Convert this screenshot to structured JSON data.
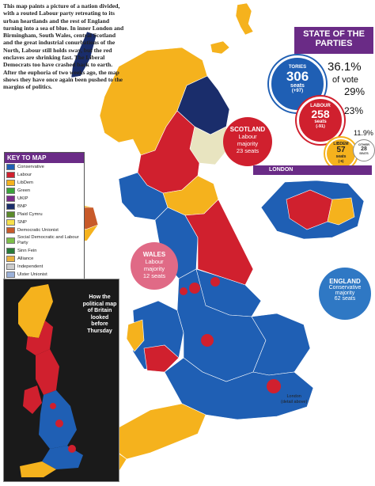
{
  "intro": "This map paints a picture of a nation divided, with a routed Labour party retreating to its urban heartlands and the rest of England turning into a sea of blue. In inner London and Birmingham, South Wales, central Scotland and the great industrial conurbations of the North, Labour still holds sway, but the red enclaves are shrinking fast. The Liberal Democrats too have crashed back to earth. After the euphoria of two weeks ago, the map shows they have once again been pushed to the margins of politics.",
  "parties": {
    "title_line1": "STATE OF THE",
    "title_line2": "PARTIES",
    "tories": {
      "name": "TORIES",
      "seats": "306",
      "seats_label": "seats",
      "change": "(+97)",
      "pct": "36.1%",
      "pct_label": "of vote",
      "color": "#1f5fb4"
    },
    "labour": {
      "name": "LABOUR",
      "seats": "258",
      "seats_label": "seats",
      "change": "(-91)",
      "pct": "29%",
      "color": "#d0202e"
    },
    "libdem": {
      "name": "LIBDEM",
      "seats": "57",
      "seats_label": "seats",
      "change": "(-5)",
      "pct": "23%",
      "color": "#f5b21d"
    },
    "other": {
      "name": "OTHER",
      "seats": "28",
      "seats_label": "SEATS",
      "pct": "11.9%"
    }
  },
  "regions": {
    "scotland": {
      "name": "SCOTLAND",
      "line1": "Labour",
      "line2": "majority",
      "line3": "23 seats",
      "color": "#d0202e"
    },
    "wales": {
      "name": "WALES",
      "line1": "Labour",
      "line2": "majority",
      "line3": "12 seats",
      "color": "#e06a86"
    },
    "england": {
      "name": "ENGLAND",
      "line1": "Conservative",
      "line2": "majority",
      "line3": "62 seats",
      "color": "#2f78c4"
    }
  },
  "london": {
    "label": "LONDON",
    "note_line1": "London",
    "note_line2": "(detail above)"
  },
  "key": {
    "title": "KEY TO MAP",
    "items": [
      {
        "label": "Conservative",
        "color": "#1f5fb4"
      },
      {
        "label": "Labour",
        "color": "#d0202e"
      },
      {
        "label": "LibDem",
        "color": "#f5b21d"
      },
      {
        "label": "Green",
        "color": "#3aa33a"
      },
      {
        "label": "UKIP",
        "color": "#7a2a8a"
      },
      {
        "label": "BNP",
        "color": "#1a2d6b"
      },
      {
        "label": "Plaid Cymru",
        "color": "#5a8a2a"
      },
      {
        "label": "SNP",
        "color": "#f7e04a"
      },
      {
        "label": "Democratic Unionist",
        "color": "#c85a2a"
      },
      {
        "label": "Social Democratic and Labour Party",
        "color": "#7dbf4a"
      },
      {
        "label": "Sinn Fein",
        "color": "#2a7a3a"
      },
      {
        "label": "Alliance",
        "color": "#e8b040"
      },
      {
        "label": "Independent",
        "color": "#cccccc"
      },
      {
        "label": "Ulster Unionist",
        "color": "#9ab0d8"
      }
    ]
  },
  "inset": {
    "line1": "How the",
    "line2": "political map",
    "line3": "of Britain",
    "line4": "looked",
    "line5": "before",
    "line6": "Thursday"
  }
}
